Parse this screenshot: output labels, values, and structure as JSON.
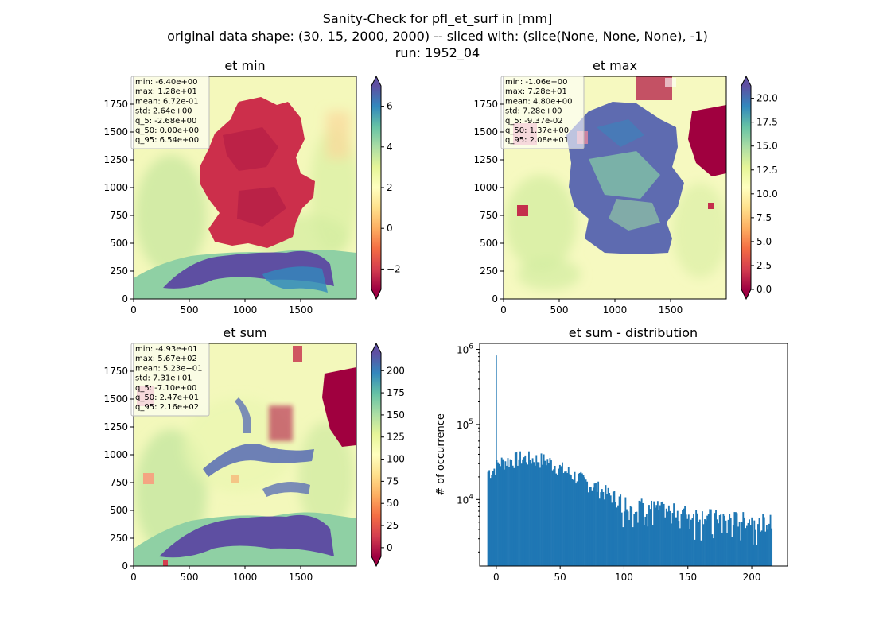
{
  "figure": {
    "title_lines": [
      "Sanity-Check for pfl_et_surf in [mm]",
      "original data shape: (30, 15, 2000, 2000) -- sliced with: (slice(None, None, None), -1)",
      "run: 1952_04"
    ]
  },
  "chart_data": [
    {
      "type": "heatmap",
      "title": "et min",
      "x_ticks": [
        0,
        500,
        1000,
        1500
      ],
      "y_ticks": [
        0,
        250,
        500,
        750,
        1000,
        1250,
        1500,
        1750
      ],
      "xlim": [
        0,
        2000
      ],
      "ylim": [
        0,
        2000
      ],
      "colormap": "Spectral",
      "colorbar": {
        "vmin": -3,
        "vmax": 7,
        "ticks": [
          -2,
          0,
          2,
          4,
          6
        ],
        "tick_labels": [
          "−2",
          "0",
          "2",
          "4",
          "6"
        ],
        "extend": "both"
      },
      "stats": [
        "min: -6.40e+00",
        "max: 1.28e+01",
        "mean: 6.72e-01",
        "std: 2.64e+00",
        "q_5: -2.68e+00",
        "q_50: 0.00e+00",
        "q_95: 6.54e+00"
      ]
    },
    {
      "type": "heatmap",
      "title": "et max",
      "x_ticks": [
        0,
        500,
        1000,
        1500
      ],
      "y_ticks": [
        0,
        250,
        500,
        750,
        1000,
        1250,
        1500,
        1750
      ],
      "xlim": [
        0,
        2000
      ],
      "ylim": [
        0,
        2000
      ],
      "colormap": "Spectral",
      "colorbar": {
        "vmin": 0,
        "vmax": 21.3,
        "ticks": [
          0,
          2.5,
          5,
          7.5,
          10,
          12.5,
          15,
          17.5,
          20
        ],
        "tick_labels": [
          "0.0",
          "2.5",
          "5.0",
          "7.5",
          "10.0",
          "12.5",
          "15.0",
          "17.5",
          "20.0"
        ],
        "extend": "both"
      },
      "stats": [
        "min: -1.06e+00",
        "max: 7.28e+01",
        "mean: 4.80e+00",
        "std: 7.28e+00",
        "q_5: -9.37e-02",
        "q_50: 1.37e+00",
        "q_95: 2.08e+01"
      ]
    },
    {
      "type": "heatmap",
      "title": "et sum",
      "x_ticks": [
        0,
        500,
        1000,
        1500
      ],
      "y_ticks": [
        0,
        250,
        500,
        750,
        1000,
        1250,
        1500,
        1750
      ],
      "xlim": [
        0,
        2000
      ],
      "ylim": [
        0,
        2000
      ],
      "colormap": "Spectral",
      "colorbar": {
        "vmin": -10,
        "vmax": 220,
        "ticks": [
          0,
          25,
          50,
          75,
          100,
          125,
          150,
          175,
          200
        ],
        "tick_labels": [
          "0",
          "25",
          "50",
          "75",
          "100",
          "125",
          "150",
          "175",
          "200"
        ],
        "extend": "both"
      },
      "stats": [
        "min: -4.93e+01",
        "max: 5.67e+02",
        "mean: 5.23e+01",
        "std: 7.31e+01",
        "q_5: -7.10e+00",
        "q_50: 2.47e+01",
        "q_95: 2.16e+02"
      ]
    },
    {
      "type": "bar",
      "title": "et sum - distribution",
      "xlabel": "",
      "ylabel": "# of occurrence",
      "yscale": "log",
      "xlim": [
        -13,
        228
      ],
      "ylim": [
        1300,
        1200000
      ],
      "x_ticks": [
        0,
        50,
        100,
        150,
        200
      ],
      "y_ticks": [
        10000,
        100000,
        1000000
      ],
      "y_tick_labels": [
        {
          "base": "10",
          "exp": "4"
        },
        {
          "base": "10",
          "exp": "5"
        },
        {
          "base": "10",
          "exp": "6"
        }
      ],
      "color": "#1f77b4",
      "bin_range": [
        -7,
        216
      ],
      "spike": {
        "x": 0,
        "value": 830000
      },
      "profile": [
        {
          "x": -7,
          "value": 24000
        },
        {
          "x": -2,
          "value": 26000
        },
        {
          "x": 2,
          "value": 32000
        },
        {
          "x": 20,
          "value": 37000
        },
        {
          "x": 40,
          "value": 34000
        },
        {
          "x": 50,
          "value": 27000
        },
        {
          "x": 75,
          "value": 16000
        },
        {
          "x": 100,
          "value": 9500
        },
        {
          "x": 125,
          "value": 8000
        },
        {
          "x": 150,
          "value": 6800
        },
        {
          "x": 175,
          "value": 6000
        },
        {
          "x": 200,
          "value": 5500
        },
        {
          "x": 216,
          "value": 5200
        }
      ]
    }
  ]
}
